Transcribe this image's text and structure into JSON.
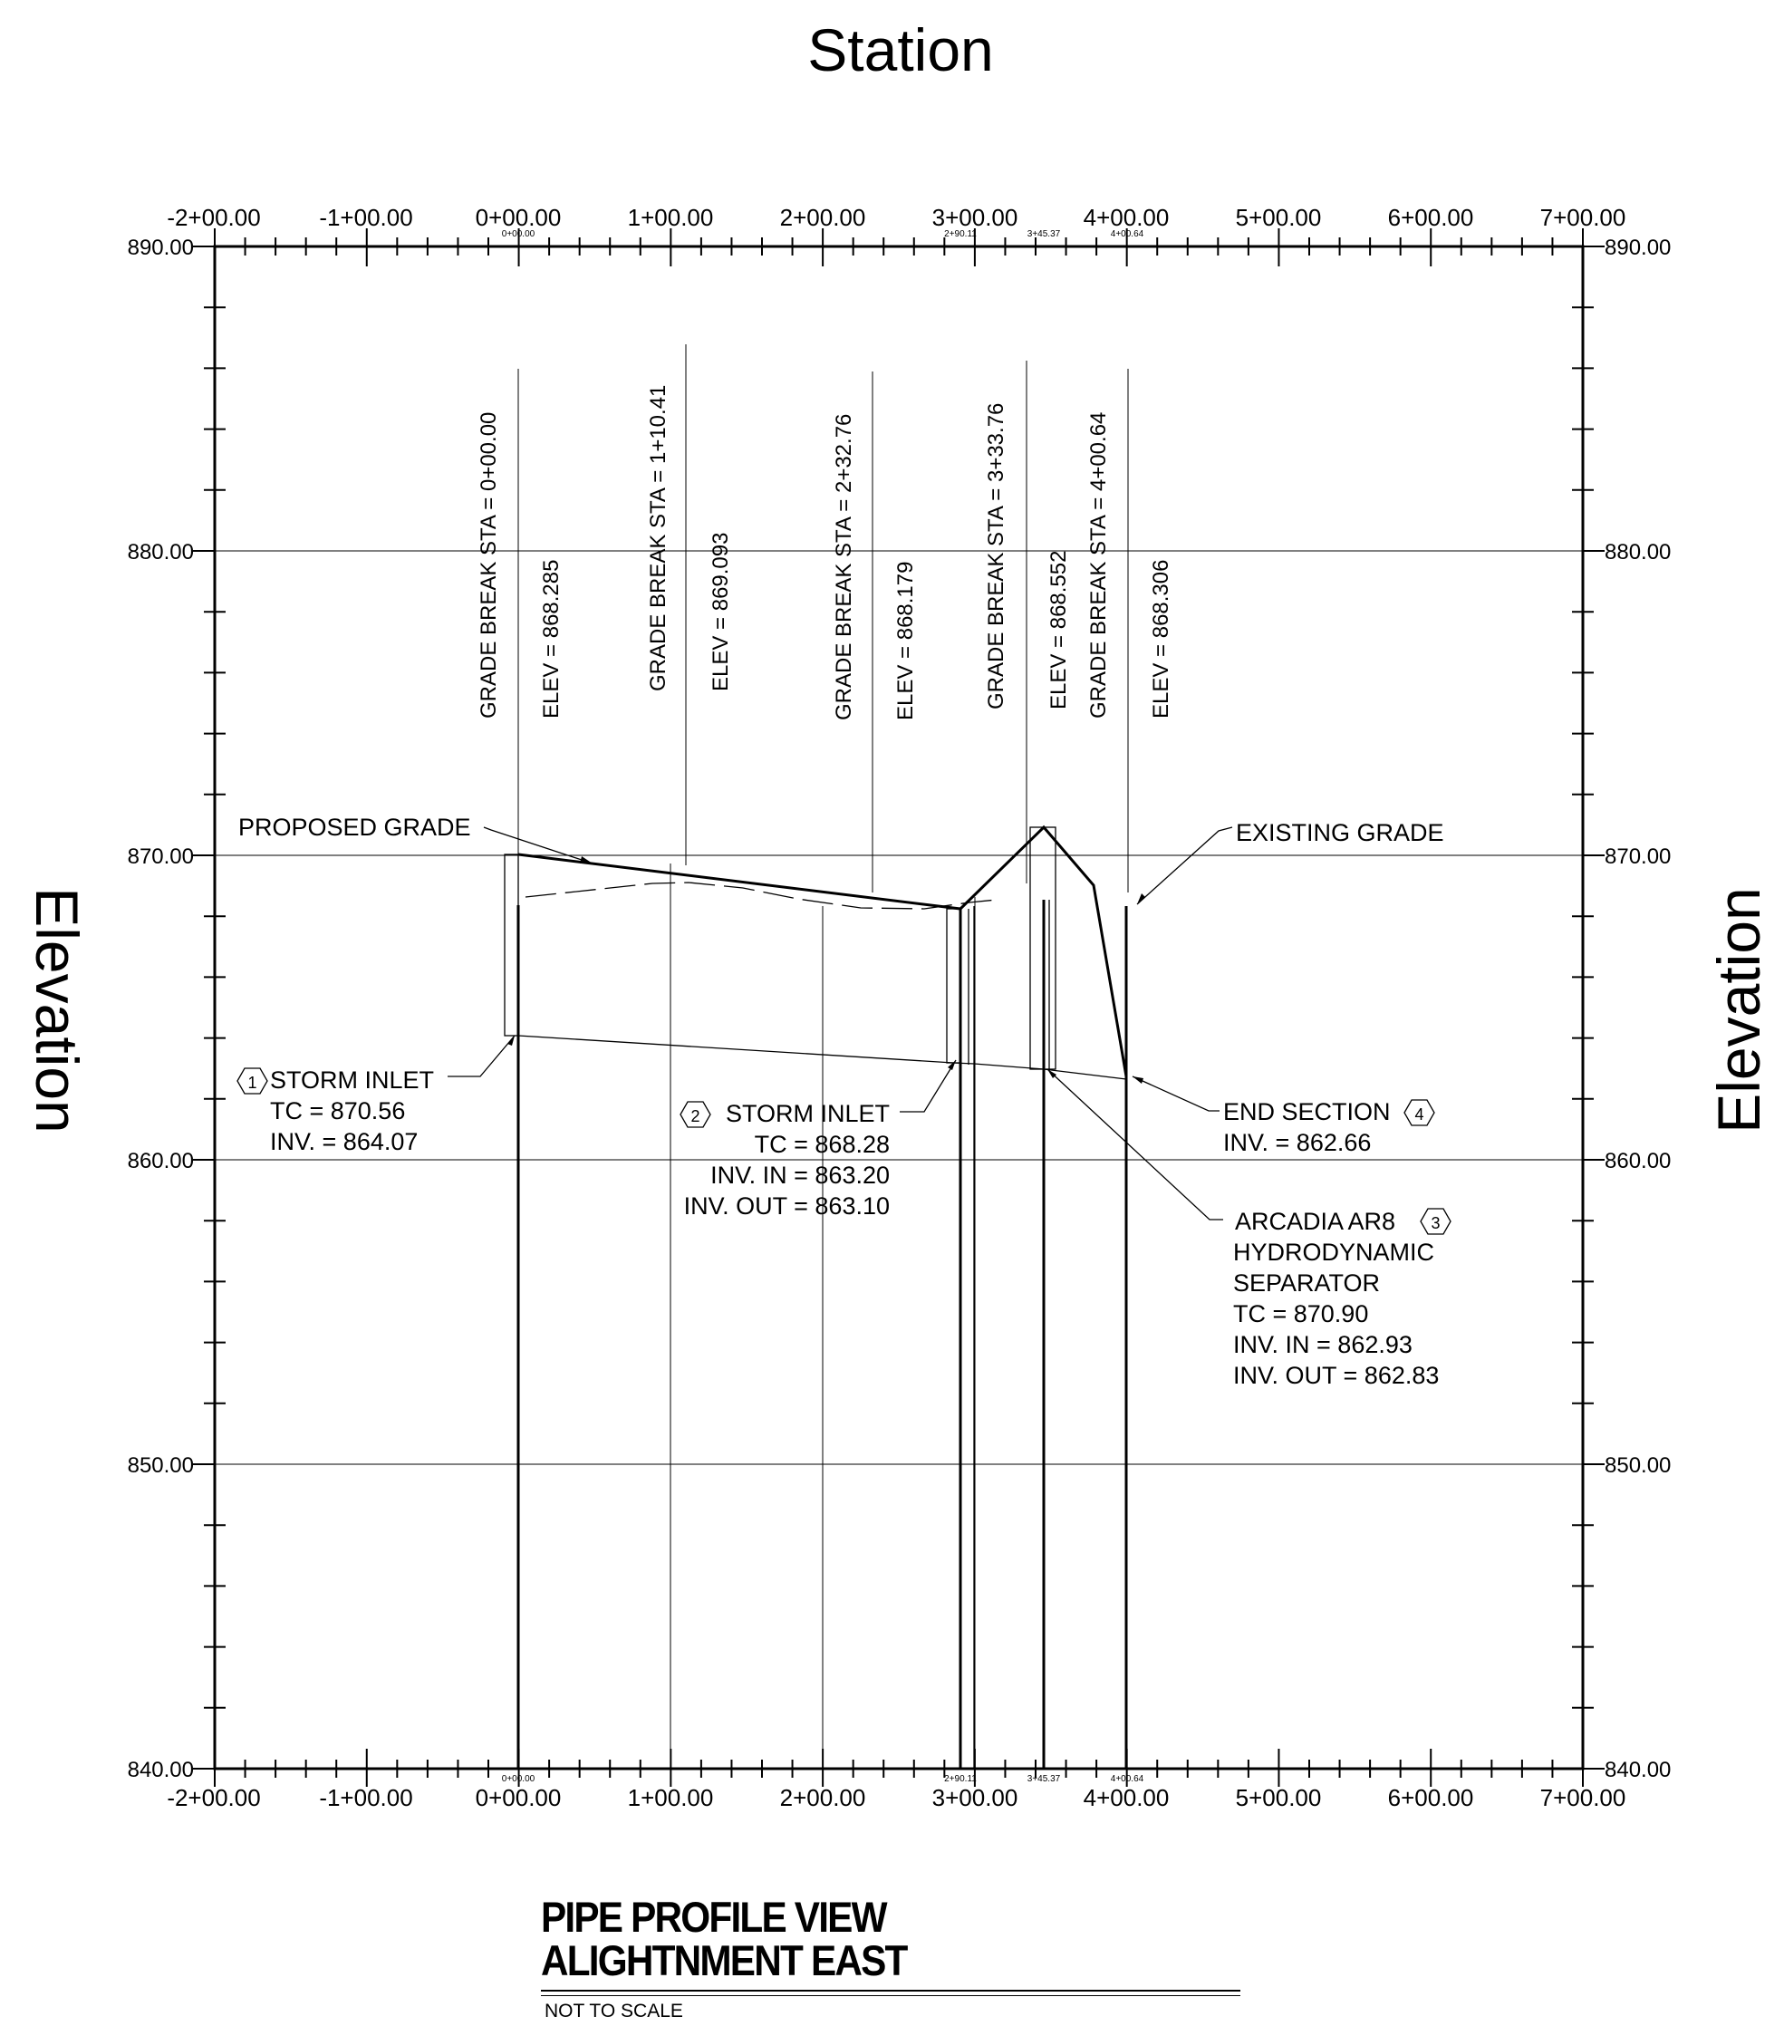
{
  "header": {
    "title": "Station"
  },
  "axes": {
    "side_label_left": "Elevation",
    "side_label_right": "Elevation",
    "elevation_ticks": [
      "890.00",
      "880.00",
      "870.00",
      "860.00",
      "850.00",
      "840.00"
    ],
    "station_ticks": [
      "-2+00.00",
      "-1+00.00",
      "0+00.00",
      "1+00.00",
      "2+00.00",
      "3+00.00",
      "4+00.00",
      "5+00.00",
      "6+00.00",
      "7+00.00"
    ],
    "structure_station_tags": [
      "0+00.00",
      "2+90.11",
      "3+45.37",
      "4+00.64"
    ]
  },
  "grade_breaks": [
    {
      "station": 0.0,
      "label": "GRADE BREAK STA = 0+00.00",
      "elev_label": "ELEV =  868.285"
    },
    {
      "station": 110.41,
      "label": "GRADE BREAK STA = 1+10.41",
      "elev_label": "ELEV =  869.093"
    },
    {
      "station": 232.76,
      "label": "GRADE BREAK STA = 2+32.76",
      "elev_label": "ELEV =  868.179"
    },
    {
      "station": 333.76,
      "label": "GRADE BREAK STA = 3+33.76",
      "elev_label": "ELEV =  868.552"
    },
    {
      "station": 400.64,
      "label": "GRADE BREAK STA = 4+00.64",
      "elev_label": "ELEV =  868.306"
    }
  ],
  "callouts": {
    "proposed_grade": "PROPOSED GRADE",
    "existing_grade": "EXISTING GRADE",
    "structure_1": {
      "tag": "1",
      "lines": [
        "STORM INLET",
        "TC = 870.56",
        "INV. = 864.07"
      ]
    },
    "structure_2": {
      "tag": "2",
      "lines": [
        "STORM INLET",
        "TC = 868.28",
        "INV. IN = 863.20",
        "INV. OUT = 863.10"
      ]
    },
    "structure_3": {
      "tag": "3",
      "lines": [
        "ARCADIA AR8",
        "HYDRODYNAMIC",
        "SEPARATOR",
        "TC = 870.90",
        "INV. IN = 862.93",
        "INV. OUT = 862.83"
      ]
    },
    "structure_4": {
      "tag": "4",
      "lines": [
        "END SECTION",
        "INV. = 862.66"
      ]
    }
  },
  "title_block": {
    "line1": "PIPE PROFILE VIEW",
    "line2": "ALIGHTNMENT EAST",
    "scale_note": "NOT TO SCALE"
  }
}
